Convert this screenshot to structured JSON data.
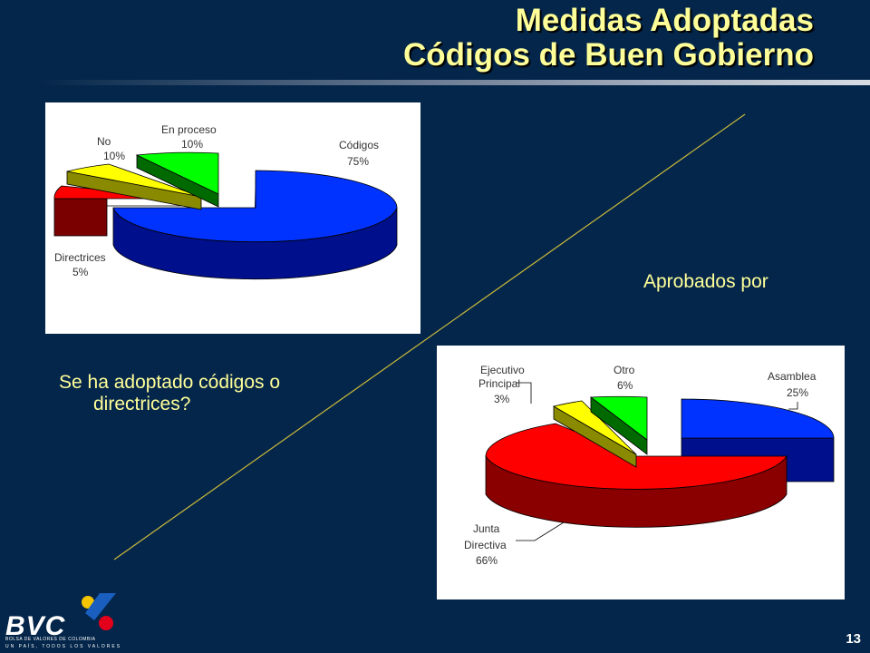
{
  "title": {
    "line1": "Medidas Adoptadas",
    "line2": "Códigos de Buen Gobierno"
  },
  "question": {
    "line1": "Se ha adoptado códigos o",
    "line2": "directrices?"
  },
  "approved_label": "Aprobados por",
  "chart_data": [
    {
      "type": "pie",
      "slices": [
        {
          "label": "Códigos",
          "value": 75,
          "pct": "75%",
          "color": "#0033ff"
        },
        {
          "label": "Directrices",
          "value": 5,
          "pct": "5%",
          "color": "#ff0000"
        },
        {
          "label": "No",
          "value": 10,
          "pct": "10%",
          "color": "#ffff00"
        },
        {
          "label": "En proceso",
          "value": 10,
          "pct": "10%",
          "color": "#00ff00"
        }
      ]
    },
    {
      "type": "pie",
      "slices": [
        {
          "label": "Asamblea",
          "value": 25,
          "pct": "25%",
          "color": "#0033ff"
        },
        {
          "label": "Junta Directiva",
          "value": 66,
          "pct": "66%",
          "color": "#ff0000"
        },
        {
          "label": "Ejecutivo Principal",
          "value": 3,
          "pct": "3%",
          "color": "#ffff00"
        },
        {
          "label": "Otro",
          "value": 6,
          "pct": "6%",
          "color": "#00ff00"
        }
      ]
    }
  ],
  "logo": {
    "name": "BVC",
    "tagline": "BOLSA DE VALORES DE COLOMBIA",
    "slogan": "UN PAÍS, TODOS LOS VALORES"
  },
  "page_number": "13"
}
